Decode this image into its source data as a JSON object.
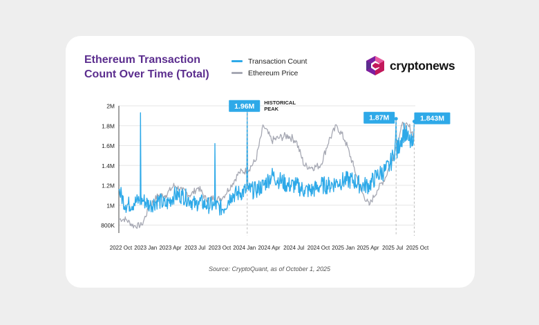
{
  "title": "Ethereum Transaction Count Over Time (Total)",
  "brand": "cryptonews",
  "source": "Source: CryptoQuant, as of October 1, 2025",
  "colors": {
    "transactions": "#2ea9e8",
    "price": "#a6a8b3",
    "title": "#5b2d8e",
    "callout": "#2ea9e8"
  },
  "chart_data": {
    "type": "line",
    "title": "Ethereum Transaction Count Over Time (Total)",
    "xlabel": "",
    "ylabel": "",
    "x_ticks": [
      "2022 Oct",
      "2023 Jan",
      "2023 Apr",
      "2023 Jul",
      "2023 Oct",
      "2024 Jan",
      "2024 Apr",
      "2024 Jul",
      "2024 Oct",
      "2025 Jan",
      "2025 Apr",
      "2025 Jul",
      "2025 Oct"
    ],
    "y_ticks": [
      800000,
      1000000,
      1200000,
      1400000,
      1600000,
      1800000,
      2000000
    ],
    "y_tick_labels": [
      "800K",
      "1M",
      "1.2M",
      "1.4M",
      "1.6M",
      "1.8M",
      "2M"
    ],
    "ylim": [
      720000,
      2000000
    ],
    "xlim": [
      "2022-09-20",
      "2025-10-05"
    ],
    "grid": "horizontal",
    "legend": "top",
    "series": [
      {
        "name": "Transaction Count",
        "color": "#2ea9e8",
        "x": [
          "2022-09-20",
          "2022-10-15",
          "2022-11-15",
          "2022-12-05",
          "2022-12-10",
          "2022-12-20",
          "2023-01-15",
          "2023-02-15",
          "2023-03-15",
          "2023-04-15",
          "2023-05-15",
          "2023-06-15",
          "2023-07-05",
          "2023-07-15",
          "2023-08-15",
          "2023-09-10",
          "2023-09-15",
          "2023-10-15",
          "2023-11-15",
          "2023-12-15",
          "2024-01-10",
          "2024-01-14",
          "2024-01-20",
          "2024-02-15",
          "2024-03-15",
          "2024-04-15",
          "2024-05-15",
          "2024-06-15",
          "2024-07-15",
          "2024-08-15",
          "2024-09-15",
          "2024-10-15",
          "2024-11-15",
          "2024-12-15",
          "2025-01-15",
          "2025-02-15",
          "2025-03-15",
          "2025-04-15",
          "2025-05-15",
          "2025-06-15",
          "2025-07-01",
          "2025-07-15",
          "2025-07-25",
          "2025-08-10",
          "2025-08-25",
          "2025-09-10",
          "2025-09-25",
          "2025-10-01"
        ],
        "values": [
          1150000,
          1000000,
          1020000,
          1050000,
          1930000,
          1050000,
          1000000,
          1050000,
          1000000,
          1100000,
          1100000,
          1050000,
          1000000,
          1040000,
          1000000,
          1000000,
          1620000,
          960000,
          1100000,
          1120000,
          1150000,
          1960000,
          1150000,
          1150000,
          1200000,
          1300000,
          1250000,
          1200000,
          1200000,
          1150000,
          1150000,
          1200000,
          1200000,
          1230000,
          1250000,
          1250000,
          1200000,
          1200000,
          1300000,
          1350000,
          1400000,
          1500000,
          1870000,
          1650000,
          1750000,
          1650000,
          1600000,
          1843000
        ],
        "peaks": [
          {
            "date": "2024-01-14",
            "value": 1960000,
            "label": "1.96M",
            "note": "HISTORICAL PEAK"
          },
          {
            "date": "2025-07-25",
            "value": 1870000,
            "label": "1.87M"
          },
          {
            "date": "2025-10-01",
            "value": 1843000,
            "label": "1.843M"
          }
        ]
      },
      {
        "name": "Ethereum Price",
        "color": "#a6a8b3",
        "x": [
          "2022-09-20",
          "2022-10-15",
          "2022-11-15",
          "2022-12-15",
          "2023-01-15",
          "2023-02-15",
          "2023-03-15",
          "2023-04-15",
          "2023-05-15",
          "2023-06-15",
          "2023-07-15",
          "2023-08-15",
          "2023-09-15",
          "2023-10-15",
          "2023-11-15",
          "2023-12-15",
          "2024-01-15",
          "2024-02-15",
          "2024-03-15",
          "2024-04-15",
          "2024-05-15",
          "2024-06-15",
          "2024-07-15",
          "2024-08-15",
          "2024-09-15",
          "2024-10-15",
          "2024-11-15",
          "2024-12-15",
          "2025-01-15",
          "2025-02-15",
          "2025-03-15",
          "2025-04-15",
          "2025-05-15",
          "2025-06-15",
          "2025-07-15",
          "2025-08-15",
          "2025-09-15",
          "2025-09-30"
        ],
        "values": [
          860000,
          860000,
          790000,
          800000,
          1000000,
          1100000,
          1100000,
          1200000,
          1150000,
          1100000,
          1180000,
          1050000,
          1040000,
          1080000,
          1200000,
          1330000,
          1350000,
          1450000,
          1800000,
          1650000,
          1680000,
          1700000,
          1650000,
          1400000,
          1380000,
          1400000,
          1650000,
          1800000,
          1650000,
          1400000,
          1150000,
          1000000,
          1150000,
          1280000,
          1500000,
          1800000,
          1780000,
          1700000
        ]
      }
    ]
  }
}
